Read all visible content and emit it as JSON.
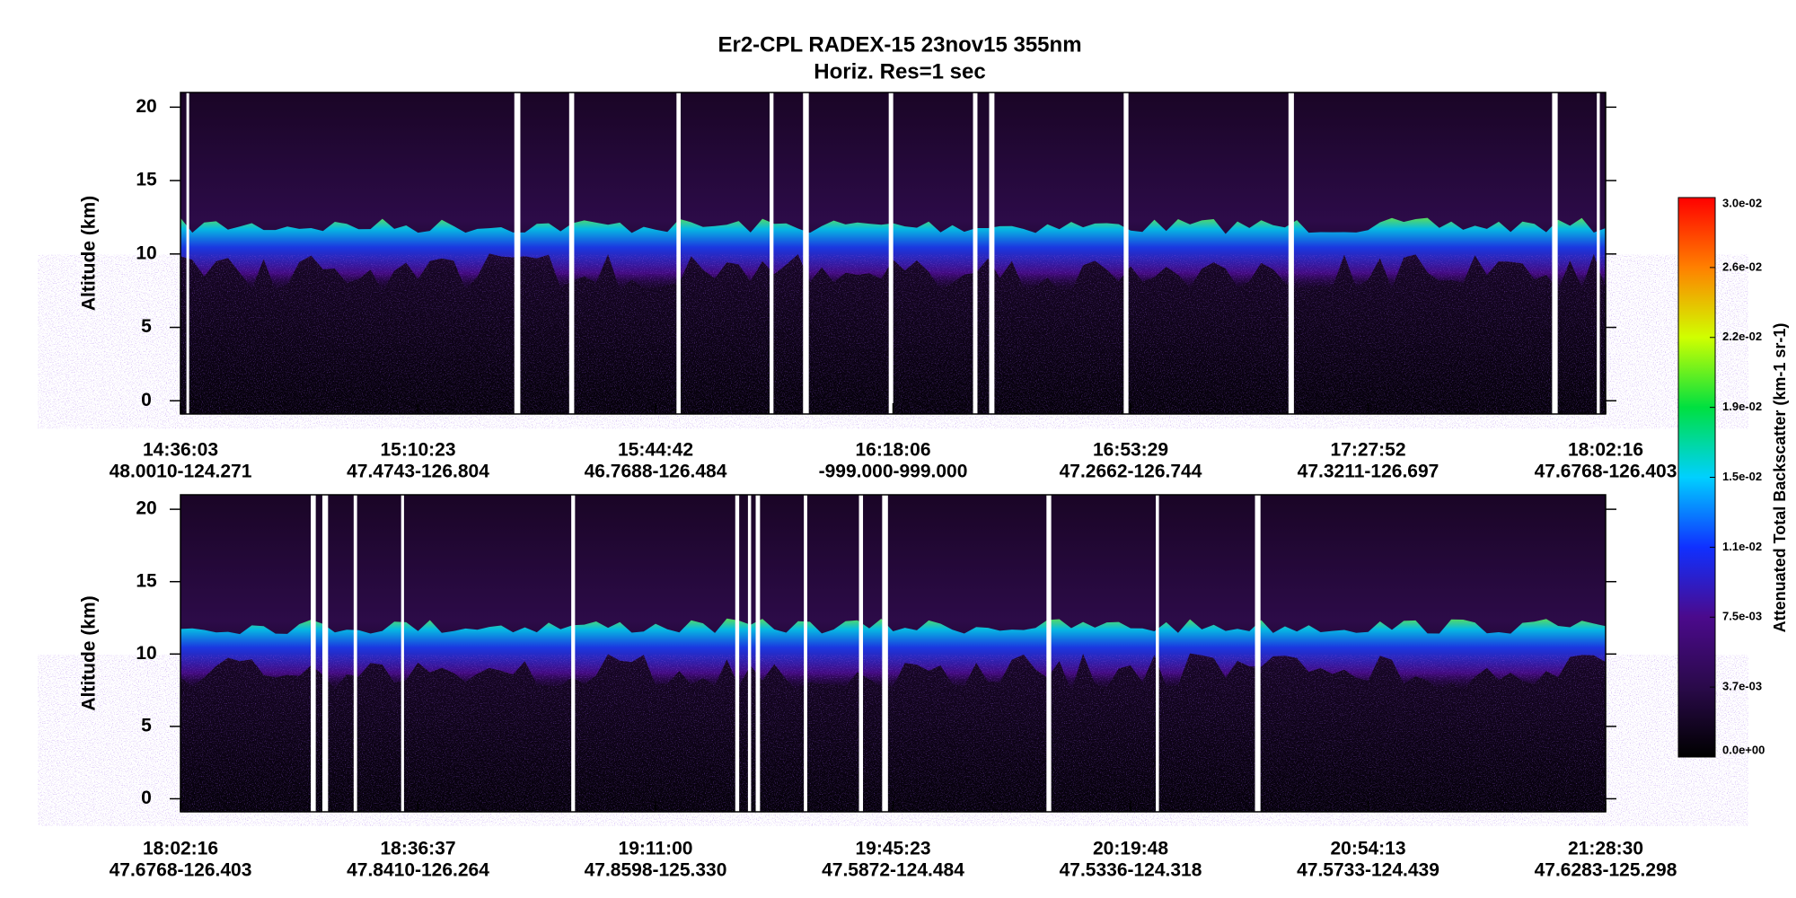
{
  "title": "Er2-CPL  RADEX-15  23nov15  355nm",
  "subtitle": "Horiz. Res=1 sec",
  "colorbar": {
    "label": "Attenuated Total Backscatter (km-1 sr-1)",
    "clim": [
      0,
      0.03
    ],
    "colors": [
      "#000000",
      "#2a0a4a",
      "#4b0a8c",
      "#1030ff",
      "#00d0ff",
      "#00e040",
      "#d0ff00",
      "#ff8000",
      "#ff0000"
    ],
    "ticks": [
      {
        "value": 0.03,
        "label": "3.0e-02"
      },
      {
        "value": 0.02625,
        "label": "2.6e-02"
      },
      {
        "value": 0.0225,
        "label": "2.2e-02"
      },
      {
        "value": 0.01875,
        "label": "1.9e-02"
      },
      {
        "value": 0.015,
        "label": "1.5e-02"
      },
      {
        "value": 0.01125,
        "label": "1.1e-02"
      },
      {
        "value": 0.0075,
        "label": "7.5e-03"
      },
      {
        "value": 0.00375,
        "label": "3.7e-03"
      },
      {
        "value": 0,
        "label": "0.0e+00"
      }
    ]
  },
  "chart_data": [
    {
      "type": "curtain",
      "ylabel": "Altitude (km)",
      "ylim": [
        -0.9,
        21
      ],
      "yticks": [
        0,
        5,
        10,
        15,
        20
      ],
      "time_labels": [
        "14:36:03",
        "15:10:23",
        "15:44:42",
        "16:18:06",
        "16:53:29",
        "17:27:52",
        "18:02:16"
      ],
      "position_labels": [
        "48.0010-124.271",
        "47.4743-126.804",
        "46.7688-126.484",
        "-999.000-999.000",
        "47.2662-126.744",
        "47.3211-126.697",
        "47.6768-126.403"
      ]
    },
    {
      "type": "curtain",
      "ylabel": "Altitude (km)",
      "ylim": [
        -0.9,
        21
      ],
      "yticks": [
        0,
        5,
        10,
        15,
        20
      ],
      "time_labels": [
        "18:02:16",
        "18:36:37",
        "19:11:00",
        "19:45:23",
        "20:19:48",
        "20:54:13",
        "21:28:30"
      ],
      "position_labels": [
        "47.6768-126.403",
        "47.8410-126.264",
        "47.8598-125.330",
        "47.5872-124.484",
        "47.5336-124.318",
        "47.5733-124.439",
        "47.6283-125.298"
      ]
    }
  ]
}
